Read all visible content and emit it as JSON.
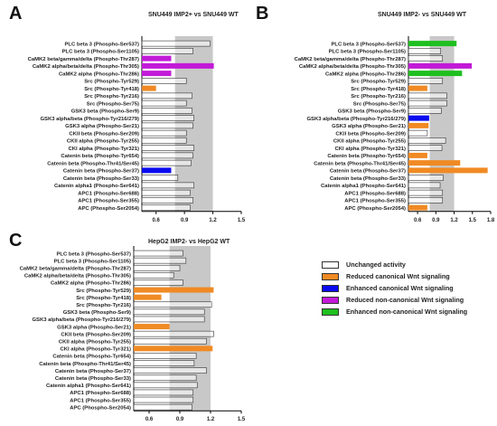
{
  "colors": {
    "unchanged": "#ffffff",
    "reduced_canonical": "#f08a24",
    "enhanced_canonical": "#0a0af0",
    "reduced_noncanonical": "#c21ad8",
    "enhanced_noncanonical": "#1fbf1f",
    "band": "#c8c8c8"
  },
  "legend": {
    "items": [
      {
        "key": "unchanged",
        "label": "Unchanged activity"
      },
      {
        "key": "reduced_canonical",
        "label": "Reduced canonical  Wnt signaling"
      },
      {
        "key": "enhanced_canonical",
        "label": "Enhanced  canonical Wnt signaling"
      },
      {
        "key": "reduced_noncanonical",
        "label": "Reduced  non-canonical Wnt signaling"
      },
      {
        "key": "enhanced_noncanonical",
        "label": "Enhanced non-canonical Wnt signaling"
      }
    ]
  },
  "chart_data": [
    {
      "panel": "A",
      "type": "bar",
      "orientation": "horizontal",
      "title": "SNU449 IMP2+ vs SNU449 WT",
      "xticks": [
        0.6,
        0.9,
        1.2,
        1.5
      ],
      "xlim": [
        0.45,
        1.5
      ],
      "band": [
        0.8,
        1.2
      ],
      "categories": [
        "PLC beta 3 (Phospho-Ser537)",
        "PLC beta 3 (Phospho-Ser1105)",
        "CaMK2 beta/gamma/delta (Phospho-Thr287)",
        "CaMK2 alpha/beta/delta (Phospho-Thr305)",
        "CaMK2 alpha (Phospho-Thr286)",
        "Src (Phospho-Tyr529)",
        "Src (Phospho-Tyr418)",
        "Src (Phospho-Tyr216)",
        "Src (Phospho-Ser75)",
        "GSK3 beta (Phospho-Ser9)",
        "GSK3 alpha/beta (Phospho-Tyr216/279)",
        "GSK3 alpha (Phospho-Ser21)",
        "CKII beta (Phospho-Ser209)",
        "CKII alpha (Phospho-Tyr255)",
        "CKI alpha (Phospho-Tyr321)",
        "Catenin beta (Phospho-Tyr654)",
        "Catenin beta (Phospho-Thr41/Ser45)",
        "Catenin beta (Phospho-Ser37)",
        "Catenin beta (Phospho-Ser33)",
        "Catenin alpha1 (Phospho-Ser641)",
        "APC1 (Phospho-Ser688)",
        "APC1 (Phospho-Ser355)",
        "APC (Phospho-Ser2054)"
      ],
      "values": [
        1.17,
        0.99,
        0.76,
        1.21,
        0.76,
        0.92,
        0.6,
        0.98,
        0.92,
        0.98,
        1.0,
        0.99,
        0.92,
        0.92,
        1.0,
        0.99,
        0.97,
        0.76,
        0.83,
        1.0,
        0.96,
        0.99,
        0.96
      ],
      "status": [
        "unchanged",
        "unchanged",
        "reduced_noncanonical",
        "reduced_noncanonical",
        "reduced_noncanonical",
        "unchanged",
        "reduced_canonical",
        "unchanged",
        "unchanged",
        "unchanged",
        "unchanged",
        "unchanged",
        "unchanged",
        "unchanged",
        "unchanged",
        "unchanged",
        "unchanged",
        "enhanced_canonical",
        "unchanged",
        "unchanged",
        "unchanged",
        "unchanged",
        "unchanged"
      ]
    },
    {
      "panel": "B",
      "type": "bar",
      "orientation": "horizontal",
      "title": "SNU449 IMP2- vs SNU449 WT",
      "xticks": [
        0.6,
        0.9,
        1.2,
        1.5,
        1.8
      ],
      "xlim": [
        0.45,
        1.8
      ],
      "band": [
        0.8,
        1.2
      ],
      "categories": [
        "PLC beta 3 (Phospho-Ser537)",
        "PLC beta 3 (Phospho-Ser1105)",
        "CaMK2 beta/gamma/delta (Phospho-Thr287)",
        "CaMK2 alpha/beta/delta (Phospho-Thr305)",
        "CaMK2 alpha (Phospho-Thr286)",
        "Src (Phospho-Tyr529)",
        "Src (Phospho-Tyr418)",
        "Src (Phospho-Tyr216)",
        "Src (Phospho-Ser75)",
        "GSK3 beta (Phospho-Ser9)",
        "GSK3 alpha/beta (Phospho-Tyr216/279)",
        "GSK3 alpha (Phospho-Ser21)",
        "CKII beta (Phospho-Ser209)",
        "CKII alpha (Phospho-Tyr255)",
        "CKI alpha (Phospho-Tyr321)",
        "Catenin beta (Phospho-Tyr654)",
        "Catenin beta (Phospho-Thr41/Ser45)",
        "Catenin beta (Phospho-Ser37)",
        "Catenin beta (Phospho-Ser33)",
        "Catenin alpha1 (Phospho-Ser641)",
        "APC1 (Phospho-Ser688)",
        "APC1 (Phospho-Ser355)",
        "APC (Phospho-Ser2054)"
      ],
      "values": [
        1.24,
        0.98,
        1.01,
        1.49,
        1.33,
        1.01,
        0.76,
        1.08,
        1.08,
        0.99,
        0.79,
        0.78,
        0.76,
        1.06,
        1.0,
        0.76,
        1.3,
        1.75,
        1.02,
        0.97,
        1.01,
        1.01,
        0.76
      ],
      "status": [
        "enhanced_noncanonical",
        "unchanged",
        "unchanged",
        "reduced_noncanonical",
        "enhanced_noncanonical",
        "unchanged",
        "reduced_canonical",
        "unchanged",
        "unchanged",
        "unchanged",
        "enhanced_canonical",
        "reduced_canonical",
        "unchanged",
        "unchanged",
        "unchanged",
        "reduced_canonical",
        "reduced_canonical",
        "reduced_canonical",
        "unchanged",
        "unchanged",
        "unchanged",
        "unchanged",
        "reduced_canonical"
      ]
    },
    {
      "panel": "C",
      "type": "bar",
      "orientation": "horizontal",
      "title": "HepG2 IMP2- vs HepG2 WT",
      "xticks": [
        0.6,
        0.9,
        1.2,
        1.5
      ],
      "xlim": [
        0.45,
        1.5
      ],
      "band": [
        0.8,
        1.2
      ],
      "categories": [
        "PLC beta 3 (Phospho-Ser537)",
        "PLC beta 3 (Phospho-Ser1105)",
        "CaMK2 beta/gamma/delta (Phospho-Thr287)",
        "CaMK2 alpha/beta/delta (Phospho-Thr305)",
        "CaMK2 alpha (Phospho-Thr286)",
        "Src (Phospho-Tyr529)",
        "Src (Phospho-Tyr418)",
        "Src (Phospho-Tyr216)",
        "GSK3 beta (Phospho-Ser9)",
        "GSK3 alpha/beta (Phospho-Tyr216/279)",
        "GSK3 alpha (Phospho-Ser21)",
        "CKII beta (Phospho-Ser209)",
        "CKII alpha (Phospho-Tyr255)",
        "CKI alpha (Phospho-Tyr321)",
        "Catenin beta (Phospho-Tyr654)",
        "Catenin beta (Phospho-Thr41/Ser45)",
        "Catenin beta (Phospho-Ser37)",
        "Catenin beta (Phospho-Ser33)",
        "Catenin alpha1 (Phospho-Ser641)",
        "APC1 (Phospho-Ser688)",
        "APC1 (Phospho-Ser355)",
        "APC (Phospho-Ser2054)"
      ],
      "values": [
        0.93,
        0.96,
        0.9,
        0.84,
        0.93,
        1.23,
        0.72,
        1.21,
        1.14,
        1.14,
        0.8,
        1.23,
        1.16,
        1.22,
        1.06,
        1.04,
        1.16,
        1.06,
        1.07,
        1.03,
        1.03,
        1.02
      ],
      "status": [
        "unchanged",
        "unchanged",
        "unchanged",
        "unchanged",
        "unchanged",
        "reduced_canonical",
        "reduced_canonical",
        "unchanged",
        "unchanged",
        "unchanged",
        "reduced_canonical",
        "unchanged",
        "unchanged",
        "reduced_canonical",
        "unchanged",
        "unchanged",
        "unchanged",
        "unchanged",
        "unchanged",
        "unchanged",
        "unchanged",
        "unchanged"
      ]
    }
  ]
}
